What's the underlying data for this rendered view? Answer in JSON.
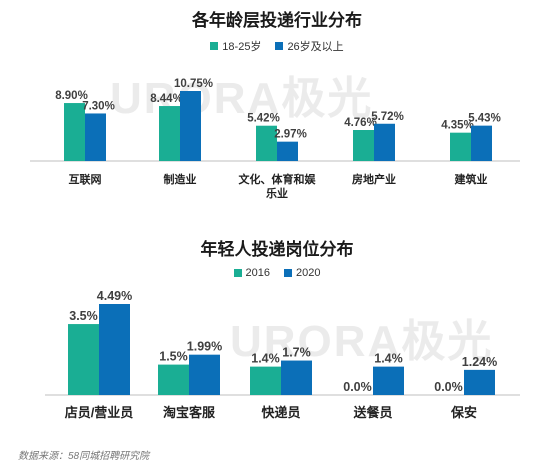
{
  "colors": {
    "teal": "#1AAE94",
    "blue": "#0B6FB8"
  },
  "watermark": "URORA极光",
  "source": "数据来源：58同城招聘研究院",
  "chart_data": [
    {
      "type": "bar",
      "title": "各年龄层投递行业分布",
      "categories": [
        "互联网",
        "制造业",
        "文化、体育和娱乐业",
        "房地产业",
        "建筑业"
      ],
      "category_lines": [
        [
          "互联网"
        ],
        [
          "制造业"
        ],
        [
          "文化、体育和娱",
          "乐业"
        ],
        [
          "房地产业"
        ],
        [
          "建筑业"
        ]
      ],
      "series": [
        {
          "name": "18-25岁",
          "values": [
            8.9,
            8.44,
            5.42,
            4.76,
            4.35
          ],
          "labels": [
            "8.90%",
            "8.44%",
            "5.42%",
            "4.76%",
            "4.35%"
          ]
        },
        {
          "name": "26岁及以上",
          "values": [
            7.3,
            10.75,
            2.97,
            5.72,
            5.43
          ],
          "labels": [
            "7.30%",
            "10.75%",
            "2.97%",
            "5.72%",
            "5.43%"
          ]
        }
      ],
      "ylim": [
        0,
        10.75
      ],
      "legend_position": "top-center"
    },
    {
      "type": "bar",
      "title": "年轻人投递岗位分布",
      "categories": [
        "店员/营业员",
        "淘宝客服",
        "快递员",
        "送餐员",
        "保安"
      ],
      "category_lines": [
        [
          "店员/营业员"
        ],
        [
          "淘宝客服"
        ],
        [
          "快递员"
        ],
        [
          "送餐员"
        ],
        [
          "保安"
        ]
      ],
      "series": [
        {
          "name": "2016",
          "values": [
            3.5,
            1.5,
            1.4,
            0.0,
            0.0
          ],
          "labels": [
            "3.5%",
            "1.5%",
            "1.4%",
            "0.0%",
            "0.0%"
          ]
        },
        {
          "name": "2020",
          "values": [
            4.49,
            1.99,
            1.7,
            1.4,
            1.24
          ],
          "labels": [
            "4.49%",
            "1.99%",
            "1.7%",
            "1.4%",
            "1.24%"
          ]
        }
      ],
      "ylim": [
        0,
        4.49
      ],
      "legend_position": "top-center"
    }
  ]
}
